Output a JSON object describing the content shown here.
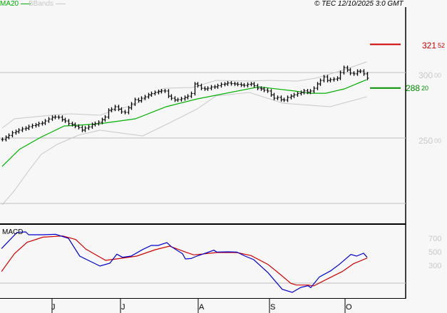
{
  "legend": {
    "ma_label": "MA20",
    "ma_color": "#00b000",
    "bb_label": "BBands",
    "bb_color": "#c8c8c8"
  },
  "header": {
    "copyright": "© TEC 12/10/2025 3:0 GMT"
  },
  "macd_label": "MACD",
  "months": [
    "J",
    "J",
    "A",
    "S",
    "O"
  ],
  "chart_data": [
    {
      "type": "line",
      "subtype": "ohlc-bars with overlays",
      "y_axis": {
        "ticks": [
          {
            "value": 300,
            "main": "300",
            "dec": "00"
          },
          {
            "value": 250,
            "main": "250",
            "dec": "00"
          }
        ],
        "gridlines": [
          300,
          250,
          200
        ],
        "ylim": [
          178,
          356
        ]
      },
      "closes": [
        248.9,
        250.5,
        252,
        254,
        254.9,
        256,
        257,
        257.5,
        258.7,
        259.5,
        260,
        261,
        261.4,
        263,
        264.5,
        265.8,
        266,
        265.8,
        264,
        263,
        261,
        260.3,
        259,
        258,
        256,
        257.6,
        258.5,
        260.3,
        261,
        262,
        264,
        266,
        271.2,
        272,
        273.9,
        272,
        270,
        269.6,
        273,
        276,
        279.3,
        278.5,
        280.4,
        281.5,
        283,
        284,
        284.8,
        285.5,
        286,
        285.9,
        282,
        280.4,
        279,
        279.3,
        280,
        281,
        282,
        284,
        291.3,
        290,
        288,
        287.5,
        288,
        289,
        289.1,
        290,
        291,
        291.3,
        292,
        291.5,
        291.3,
        291,
        290.5,
        290.2,
        291,
        291.3,
        290,
        288,
        287.5,
        286.5,
        285.9,
        283,
        280.4,
        281,
        279.3,
        279,
        281,
        282,
        283,
        284,
        284.8,
        286,
        285,
        285.9,
        288,
        291.3,
        294,
        296.7,
        294,
        294.6,
        295,
        295.7,
        300,
        303.8,
        302,
        299.5,
        299,
        301,
        301.1,
        299,
        295.7
      ],
      "ma20": [
        [
          0,
          228.3
        ],
        [
          5.2,
          241.3
        ],
        [
          11.6,
          250.5
        ],
        [
          18.7,
          259.2
        ],
        [
          23,
          259.8
        ],
        [
          29.5,
          260.9
        ],
        [
          40.2,
          264.7
        ],
        [
          49.5,
          273.9
        ],
        [
          58.9,
          279.9
        ],
        [
          77.4,
          289.1
        ],
        [
          88.2,
          285.9
        ],
        [
          92.5,
          284.2
        ],
        [
          97.6,
          284.2
        ],
        [
          103.2,
          287.5
        ],
        [
          110,
          294.6
        ]
      ],
      "bb_upper": [
        [
          0,
          257.6
        ],
        [
          3.7,
          264.7
        ],
        [
          16.6,
          267.9
        ],
        [
          20.9,
          268.5
        ],
        [
          29.5,
          267.4
        ],
        [
          33.8,
          271.2
        ],
        [
          39.6,
          275
        ],
        [
          48.8,
          288
        ],
        [
          57.4,
          288.6
        ],
        [
          64.5,
          294
        ],
        [
          74.6,
          293.5
        ],
        [
          80.4,
          294
        ],
        [
          89,
          293.5
        ],
        [
          94.6,
          295.7
        ],
        [
          101.9,
          301.1
        ],
        [
          110,
          308.2
        ]
      ],
      "bb_lower": [
        [
          0,
          198.9
        ],
        [
          3.7,
          209.8
        ],
        [
          8,
          225
        ],
        [
          11.8,
          237.5
        ],
        [
          16.6,
          245.1
        ],
        [
          23,
          252.2
        ],
        [
          29.5,
          256
        ],
        [
          42.4,
          251.6
        ],
        [
          49.5,
          260.3
        ],
        [
          58.9,
          272.3
        ],
        [
          64.5,
          282.1
        ],
        [
          74.6,
          284.8
        ],
        [
          84.7,
          276.6
        ],
        [
          98.9,
          273.9
        ],
        [
          110,
          281.5
        ]
      ],
      "levels": [
        {
          "value": 321.52,
          "main": "321",
          "dec": "52",
          "color": "#d00000"
        },
        {
          "value": 288.2,
          "main": "288",
          "dec": "20",
          "color": "#009000"
        }
      ]
    },
    {
      "type": "line",
      "title": "MACD",
      "y_axis": {
        "ticks": [
          700,
          500,
          300
        ],
        "ylim": [
          -91,
          927
        ]
      },
      "macd": [
        [
          -0.2,
          577
        ],
        [
          4.5,
          815
        ],
        [
          7.1,
          822
        ],
        [
          8,
          780
        ],
        [
          12.3,
          780
        ],
        [
          16.1,
          787
        ],
        [
          20,
          728
        ],
        [
          23.4,
          465
        ],
        [
          29.5,
          318
        ],
        [
          32.5,
          360
        ],
        [
          34.6,
          494
        ],
        [
          36.3,
          448
        ],
        [
          38.9,
          465
        ],
        [
          42.4,
          563
        ],
        [
          45,
          623
        ],
        [
          47.1,
          623
        ],
        [
          49.7,
          665
        ],
        [
          51,
          605
        ],
        [
          54.4,
          500
        ],
        [
          55.3,
          423
        ],
        [
          57,
          430
        ],
        [
          58.7,
          465
        ],
        [
          61.3,
          507
        ],
        [
          63.9,
          553
        ],
        [
          64.7,
          525
        ],
        [
          68.2,
          528
        ],
        [
          70.8,
          525
        ],
        [
          73.3,
          465
        ],
        [
          75.9,
          413
        ],
        [
          80.2,
          221
        ],
        [
          84.5,
          -25
        ],
        [
          87.5,
          -70
        ],
        [
          90.1,
          3
        ],
        [
          92.3,
          27
        ],
        [
          93.1,
          0
        ],
        [
          95.7,
          158
        ],
        [
          99.1,
          248
        ],
        [
          101.7,
          342
        ],
        [
          105.2,
          490
        ],
        [
          106.9,
          465
        ],
        [
          109,
          507
        ],
        [
          110.1,
          448
        ]
      ],
      "signal": [
        [
          -0.2,
          237
        ],
        [
          3.7,
          500
        ],
        [
          7.5,
          668
        ],
        [
          12.3,
          745
        ],
        [
          18.3,
          763
        ],
        [
          22.2,
          710
        ],
        [
          25.2,
          570
        ],
        [
          31.2,
          402
        ],
        [
          35.5,
          430
        ],
        [
          40.6,
          465
        ],
        [
          46.2,
          560
        ],
        [
          50.5,
          612
        ],
        [
          55.3,
          525
        ],
        [
          57.8,
          483
        ],
        [
          64.7,
          518
        ],
        [
          70.8,
          518
        ],
        [
          75.1,
          473
        ],
        [
          80.2,
          343
        ],
        [
          83.7,
          203
        ],
        [
          87.1,
          63
        ],
        [
          88.8,
          38
        ],
        [
          92.3,
          38
        ],
        [
          94,
          25
        ],
        [
          98.3,
          133
        ],
        [
          102.6,
          237
        ],
        [
          106,
          353
        ],
        [
          110.1,
          437
        ]
      ],
      "colors": {
        "macd": "#0000d0",
        "signal": "#d00000"
      }
    }
  ]
}
